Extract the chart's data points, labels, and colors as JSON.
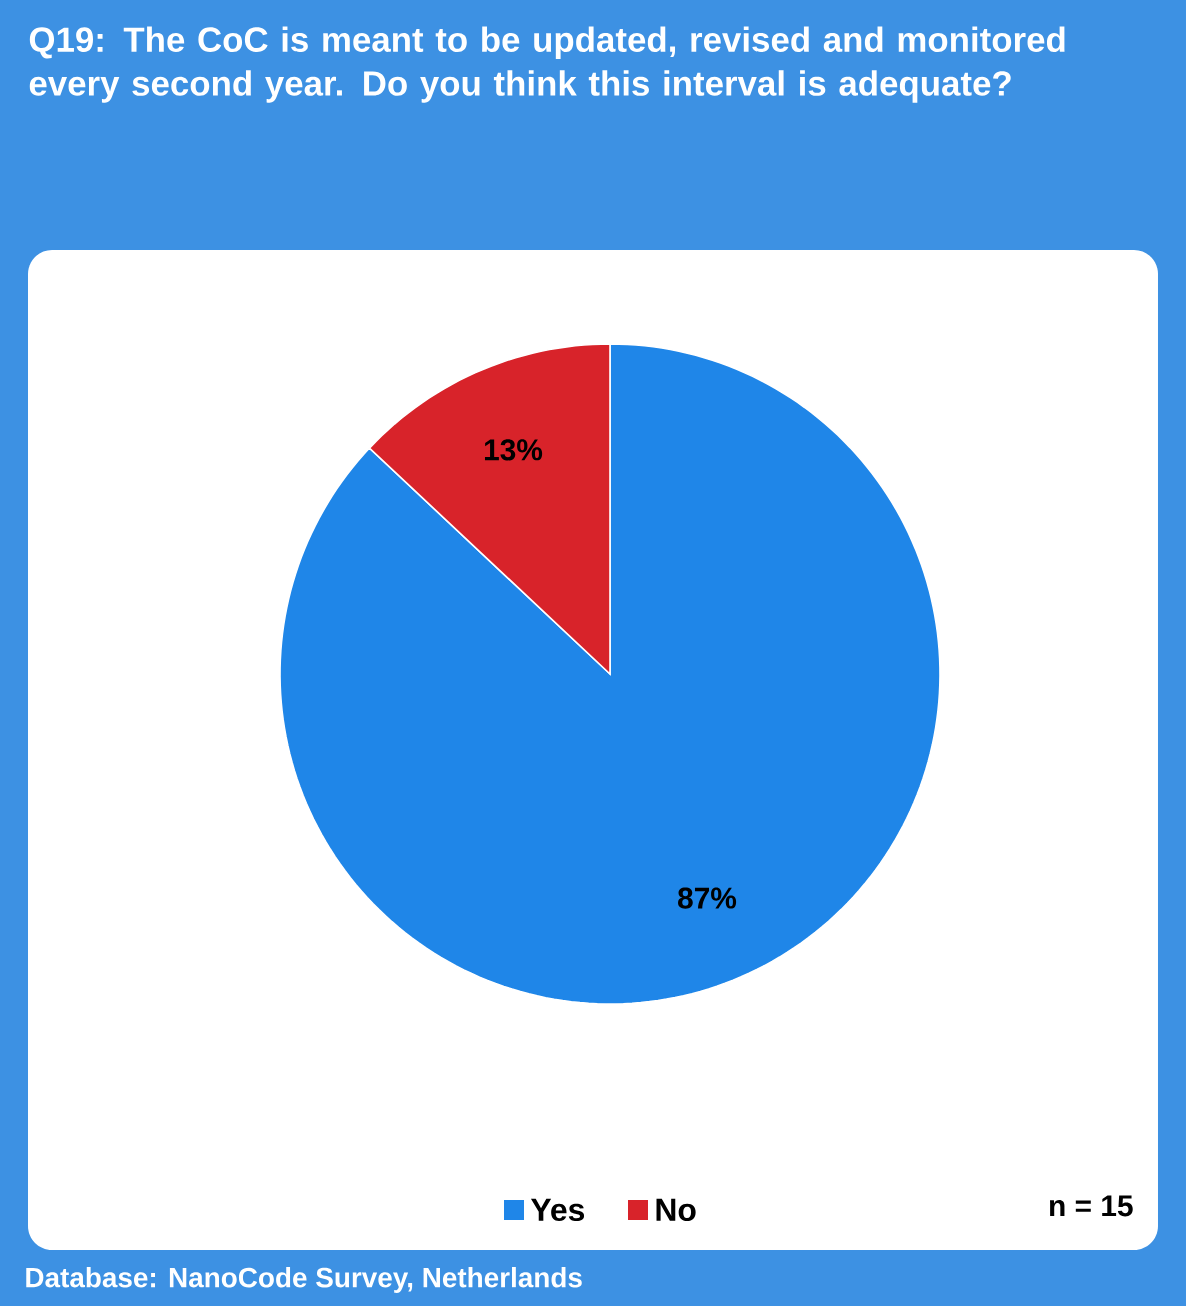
{
  "chart_data": {
    "type": "pie",
    "title": "Q19: The CoC is meant to be updated, revised and monitored every second year. Do you think this interval is adequate?",
    "categories": [
      "Yes",
      "No"
    ],
    "values": [
      87,
      13
    ],
    "colors": [
      "#1f86e8",
      "#d8232a"
    ],
    "value_labels": [
      "87%",
      "13%"
    ],
    "legend": "bottom",
    "annotations": [
      "n =  15",
      "Database: NanoCode Survey,  Netherlands"
    ]
  }
}
